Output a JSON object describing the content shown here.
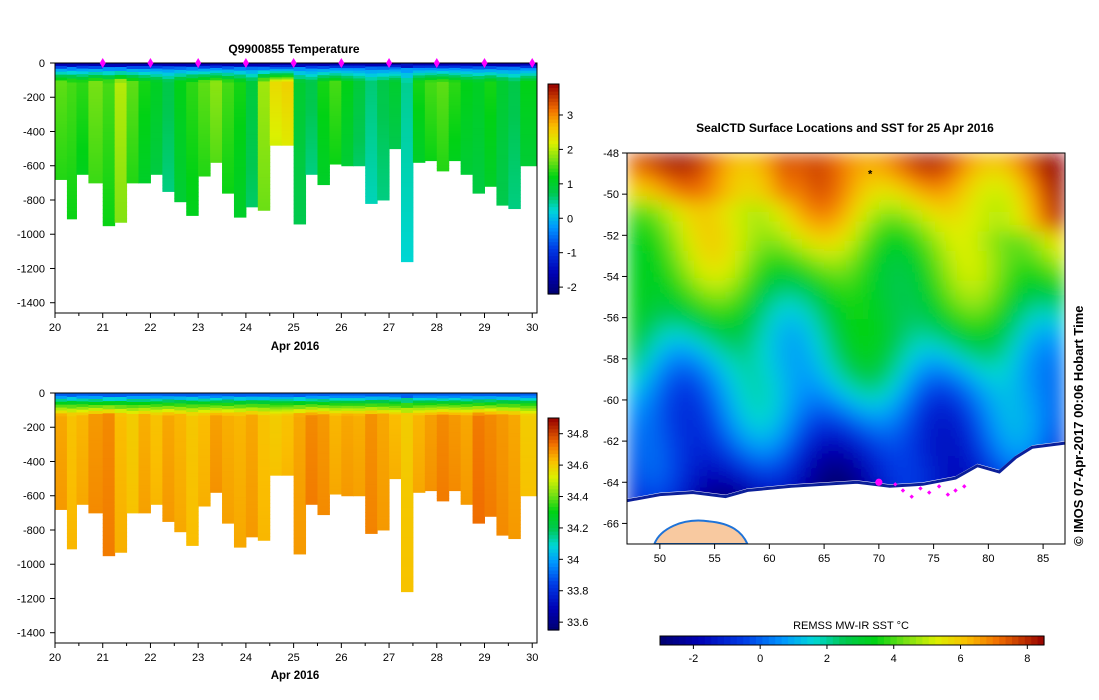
{
  "chart_data": [
    {
      "type": "heatmap",
      "title": "Q9900855  Temperature",
      "xlabel": "Apr 2016",
      "x_ticks": [
        "20",
        "21",
        "22",
        "23",
        "24",
        "25",
        "26",
        "27",
        "28",
        "29",
        "30"
      ],
      "xlim": [
        20,
        30.1
      ],
      "y_ticks": [
        "0",
        "-200",
        "-400",
        "-600",
        "-800",
        "-1000",
        "-1200",
        "-1400"
      ],
      "ylim": [
        -1460,
        0
      ],
      "colorbar": {
        "ticks": [
          "3",
          "2",
          "1",
          "0",
          "-1",
          "-2"
        ],
        "range": [
          -2.2,
          3.9
        ]
      },
      "profile_markers": [
        21,
        22,
        23,
        24,
        25,
        26,
        27,
        28,
        29,
        30
      ],
      "profile_days": [
        20.0,
        20.25,
        20.45,
        20.7,
        21.0,
        21.25,
        21.5,
        21.75,
        22.0,
        22.25,
        22.5,
        22.75,
        23.0,
        23.25,
        23.5,
        23.75,
        24.0,
        24.25,
        24.5,
        24.75,
        25.0,
        25.25,
        25.5,
        25.75,
        26.0,
        26.25,
        26.5,
        26.75,
        27.0,
        27.25,
        27.5,
        27.75,
        28.0,
        28.25,
        28.5,
        28.75,
        29.0,
        29.25,
        29.5,
        29.75
      ],
      "profile_max_depth": [
        680,
        910,
        650,
        700,
        950,
        930,
        700,
        700,
        650,
        750,
        810,
        890,
        660,
        580,
        760,
        900,
        840,
        860,
        480,
        480,
        940,
        650,
        710,
        590,
        600,
        600,
        820,
        800,
        500,
        1160,
        580,
        570,
        630,
        570,
        650,
        760,
        720,
        830,
        850,
        600
      ],
      "value_pattern_c": [
        1.6,
        1.5,
        1.4,
        1.7,
        1.5,
        2.0,
        1.6,
        1.3,
        1.1,
        0.8,
        1.2,
        1.4,
        1.6,
        1.8,
        1.5,
        1.3,
        0.9,
        1.9,
        2.4,
        2.5,
        1.0,
        0.8,
        1.3,
        1.5,
        1.2,
        0.9,
        0.6,
        0.8,
        1.0,
        0.5,
        1.3,
        1.5,
        1.6,
        1.4,
        1.2,
        1.1,
        1.3,
        1.0,
        0.8,
        1.2
      ]
    },
    {
      "type": "heatmap",
      "title": "",
      "xlabel": "Apr 2016",
      "x_ticks": [
        "20",
        "21",
        "22",
        "23",
        "24",
        "25",
        "26",
        "27",
        "28",
        "29",
        "30"
      ],
      "xlim": [
        20,
        30.1
      ],
      "y_ticks": [
        "0",
        "-200",
        "-400",
        "-600",
        "-800",
        "-1000",
        "-1200",
        "-1400"
      ],
      "ylim": [
        -1460,
        0
      ],
      "colorbar": {
        "ticks": [
          "34.8",
          "34.6",
          "34.4",
          "34.2",
          "34",
          "33.8",
          "33.6"
        ],
        "range": [
          33.55,
          34.9
        ]
      },
      "profile_days": [
        20.0,
        20.25,
        20.45,
        20.7,
        21.0,
        21.25,
        21.5,
        21.75,
        22.0,
        22.25,
        22.5,
        22.75,
        23.0,
        23.25,
        23.5,
        23.75,
        24.0,
        24.25,
        24.5,
        24.75,
        25.0,
        25.25,
        25.5,
        25.75,
        26.0,
        26.25,
        26.5,
        26.75,
        27.0,
        27.25,
        27.5,
        27.75,
        28.0,
        28.25,
        28.5,
        28.75,
        29.0,
        29.25,
        29.5,
        29.75
      ],
      "profile_max_depth": [
        680,
        910,
        650,
        700,
        950,
        930,
        700,
        700,
        650,
        750,
        810,
        890,
        660,
        580,
        760,
        900,
        840,
        860,
        480,
        480,
        940,
        650,
        710,
        590,
        600,
        600,
        820,
        800,
        500,
        1160,
        580,
        570,
        630,
        570,
        650,
        760,
        720,
        830,
        850,
        600
      ],
      "value_pattern_psu": [
        34.66,
        34.62,
        34.64,
        34.68,
        34.7,
        34.63,
        34.6,
        34.65,
        34.62,
        34.66,
        34.64,
        34.61,
        34.63,
        34.67,
        34.65,
        34.64,
        34.66,
        34.62,
        34.6,
        34.62,
        34.66,
        34.7,
        34.68,
        34.64,
        34.66,
        34.65,
        34.69,
        34.66,
        34.63,
        34.6,
        34.64,
        34.67,
        34.7,
        34.68,
        34.66,
        34.72,
        34.7,
        34.68,
        34.66,
        34.6
      ]
    },
    {
      "type": "heatmap",
      "title": "SealCTD Surface Locations and SST for 25 Apr 2016",
      "xlabel": "",
      "x_ticks": [
        "50",
        "55",
        "60",
        "65",
        "70",
        "75",
        "80",
        "85"
      ],
      "xlim": [
        47,
        87
      ],
      "y_ticks": [
        "-48",
        "-50",
        "-52",
        "-54",
        "-56",
        "-58",
        "-60",
        "-62",
        "-64",
        "-66"
      ],
      "ylim": [
        -67,
        -48
      ],
      "colorbar": {
        "label": "REMSS MW-IR SST °C",
        "ticks": [
          "-2",
          "0",
          "2",
          "4",
          "6",
          "8"
        ],
        "range": [
          -3,
          8.5
        ]
      },
      "current_location": {
        "lon": 70.0,
        "lat": -64.0
      },
      "track_lons": [
        71.5,
        72.2,
        73.0,
        73.8,
        74.6,
        75.5,
        76.3,
        77.0,
        77.8
      ],
      "track_lats": [
        -64.1,
        -64.4,
        -64.7,
        -64.3,
        -64.5,
        -64.2,
        -64.6,
        -64.4,
        -64.2
      ],
      "labels": [
        {
          "lon": 69.2,
          "lat": -49.2,
          "text": "*"
        }
      ]
    }
  ],
  "side_text": "© IMOS 07-Apr-2017 00:06 Hobart Time",
  "colors": {
    "land": "#f8c9a0",
    "ice": "#ffffff",
    "marker": "#ff00ff",
    "track": "#ff00ff"
  }
}
